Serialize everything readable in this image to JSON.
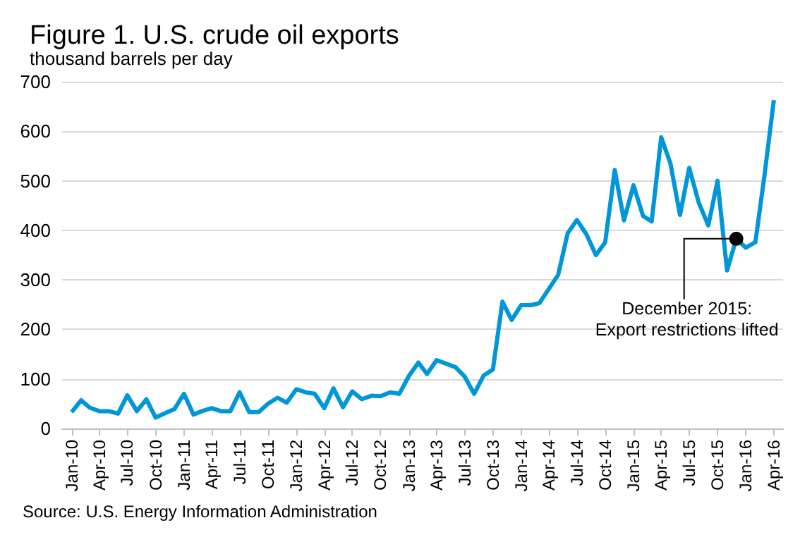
{
  "chart_data": {
    "type": "line",
    "title": "Figure 1. U.S. crude oil exports",
    "ylabel": "thousand barrels per day",
    "x": [
      "2010-01",
      "2010-02",
      "2010-03",
      "2010-04",
      "2010-05",
      "2010-06",
      "2010-07",
      "2010-08",
      "2010-09",
      "2010-10",
      "2010-11",
      "2010-12",
      "2011-01",
      "2011-02",
      "2011-03",
      "2011-04",
      "2011-05",
      "2011-06",
      "2011-07",
      "2011-08",
      "2011-09",
      "2011-10",
      "2011-11",
      "2011-12",
      "2012-01",
      "2012-02",
      "2012-03",
      "2012-04",
      "2012-05",
      "2012-06",
      "2012-07",
      "2012-08",
      "2012-09",
      "2012-10",
      "2012-11",
      "2012-12",
      "2013-01",
      "2013-02",
      "2013-03",
      "2013-04",
      "2013-05",
      "2013-06",
      "2013-07",
      "2013-08",
      "2013-09",
      "2013-10",
      "2013-11",
      "2013-12",
      "2014-01",
      "2014-02",
      "2014-03",
      "2014-04",
      "2014-05",
      "2014-06",
      "2014-07",
      "2014-08",
      "2014-09",
      "2014-10",
      "2014-11",
      "2014-12",
      "2015-01",
      "2015-02",
      "2015-03",
      "2015-04",
      "2015-05",
      "2015-06",
      "2015-07",
      "2015-08",
      "2015-09",
      "2015-10",
      "2015-11",
      "2015-12",
      "2016-01",
      "2016-02",
      "2016-03",
      "2016-04"
    ],
    "series": [
      {
        "color": "#0096d7",
        "values": [
          33,
          57,
          42,
          35,
          35,
          30,
          67,
          35,
          59,
          22,
          31,
          39,
          70,
          28,
          35,
          41,
          35,
          35,
          73,
          33,
          33,
          50,
          62,
          52,
          79,
          73,
          70,
          41,
          81,
          43,
          75,
          59,
          66,
          65,
          73,
          70,
          106,
          133,
          110,
          138,
          131,
          124,
          105,
          70,
          107,
          119,
          256,
          219,
          249,
          249,
          253,
          282,
          310,
          394,
          421,
          392,
          350,
          376,
          522,
          420,
          491,
          429,
          418,
          588,
          535,
          431,
          526,
          456,
          410,
          500,
          319,
          383,
          365,
          376,
          508,
          663
        ]
      }
    ],
    "xlim": [
      "2009-12",
      "2016-05"
    ],
    "xticks": [
      {
        "value": "2010-01",
        "label": "Jan-10"
      },
      {
        "value": "2010-04",
        "label": "Apr-10"
      },
      {
        "value": "2010-07",
        "label": "Jul-10"
      },
      {
        "value": "2010-10",
        "label": "Oct-10"
      },
      {
        "value": "2011-01",
        "label": "Jan-11"
      },
      {
        "value": "2011-04",
        "label": "Apr-11"
      },
      {
        "value": "2011-07",
        "label": "Jul-11"
      },
      {
        "value": "2011-10",
        "label": "Oct-11"
      },
      {
        "value": "2012-01",
        "label": "Jan-12"
      },
      {
        "value": "2012-04",
        "label": "Apr-12"
      },
      {
        "value": "2012-07",
        "label": "Jul-12"
      },
      {
        "value": "2012-10",
        "label": "Oct-12"
      },
      {
        "value": "2013-01",
        "label": "Jan-13"
      },
      {
        "value": "2013-04",
        "label": "Apr-13"
      },
      {
        "value": "2013-07",
        "label": "Jul-13"
      },
      {
        "value": "2013-10",
        "label": "Oct-13"
      },
      {
        "value": "2014-01",
        "label": "Jan-14"
      },
      {
        "value": "2014-04",
        "label": "Apr-14"
      },
      {
        "value": "2014-07",
        "label": "Jul-14"
      },
      {
        "value": "2014-10",
        "label": "Oct-14"
      },
      {
        "value": "2015-01",
        "label": "Jan-15"
      },
      {
        "value": "2015-04",
        "label": "Apr-15"
      },
      {
        "value": "2015-07",
        "label": "Jul-15"
      },
      {
        "value": "2015-10",
        "label": "Oct-15"
      },
      {
        "value": "2016-01",
        "label": "Jan-16"
      },
      {
        "value": "2016-04",
        "label": "Apr-16"
      }
    ],
    "ylim": [
      0,
      700
    ],
    "yticks": [
      0,
      100,
      200,
      300,
      400,
      500,
      600,
      700
    ],
    "grid": "y",
    "marker": "none",
    "line_style": "solid",
    "annotations": [
      {
        "text": "December 2015:\nExport restrictions lifted",
        "x": "2015-12",
        "y": 383
      },
      "Source: U.S. Energy Information Administration"
    ]
  }
}
